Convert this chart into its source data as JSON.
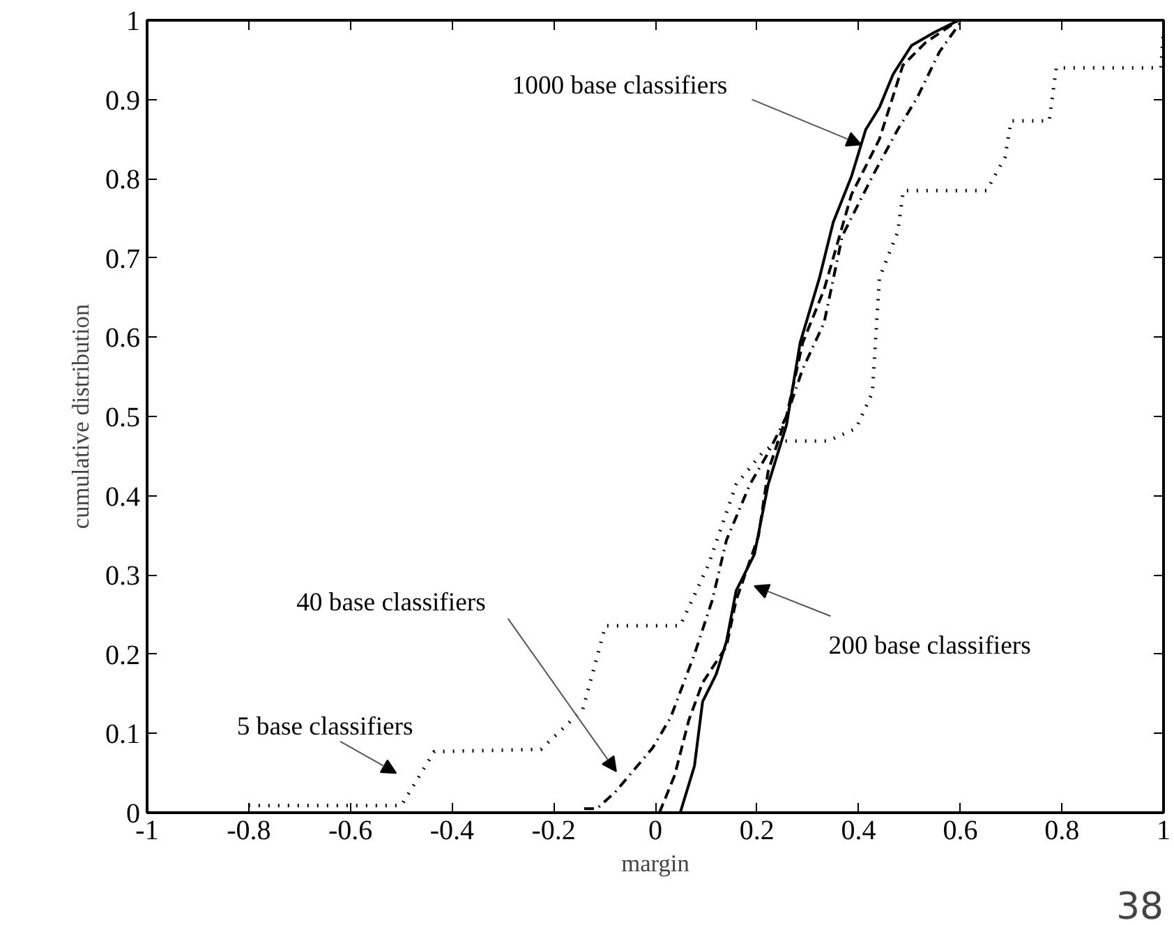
{
  "chart_data": {
    "type": "line",
    "xlabel": "margin",
    "ylabel": "cumulative distribution",
    "xlim": [
      -1,
      1
    ],
    "ylim": [
      0,
      1
    ],
    "xticks": [
      -1,
      -0.8,
      -0.6,
      -0.4,
      -0.2,
      0,
      0.2,
      0.4,
      0.6,
      0.8,
      1
    ],
    "yticks": [
      0,
      0.1,
      0.2,
      0.3,
      0.4,
      0.5,
      0.6,
      0.7,
      0.8,
      0.9,
      1
    ],
    "grid": false,
    "marker": "none",
    "series": [
      {
        "color": "#000000",
        "line_style": "dotted",
        "x": [
          -0.8,
          -0.5,
          -0.435,
          -0.225,
          -0.143,
          -0.098,
          0.049,
          0.104,
          0.159,
          0.214,
          0.249,
          0.34,
          0.395,
          0.427,
          0.441,
          0.477,
          0.488,
          0.652,
          0.688,
          0.7,
          0.775,
          0.789,
          0.995,
          1.0
        ],
        "values": [
          0.009,
          0.009,
          0.077,
          0.08,
          0.13,
          0.236,
          0.236,
          0.312,
          0.414,
          0.457,
          0.469,
          0.469,
          0.485,
          0.53,
          0.675,
          0.733,
          0.785,
          0.785,
          0.827,
          0.873,
          0.873,
          0.94,
          0.94,
          0.99
        ]
      },
      {
        "color": "#000000",
        "line_style": "dashdot",
        "x": [
          -0.14,
          -0.115,
          -0.079,
          -0.005,
          0.03,
          0.077,
          0.112,
          0.14,
          0.186,
          0.222,
          0.258,
          0.29,
          0.332,
          0.368,
          0.405,
          0.433,
          0.477,
          0.515,
          0.559,
          0.6
        ],
        "values": [
          0.005,
          0.005,
          0.026,
          0.082,
          0.12,
          0.2,
          0.268,
          0.344,
          0.414,
          0.454,
          0.5,
          0.56,
          0.618,
          0.728,
          0.775,
          0.81,
          0.862,
          0.902,
          0.96,
          0.997
        ]
      },
      {
        "color": "#000000",
        "line_style": "dashed",
        "x": [
          0.008,
          0.038,
          0.066,
          0.093,
          0.14,
          0.159,
          0.203,
          0.222,
          0.258,
          0.29,
          0.332,
          0.386,
          0.441,
          0.487,
          0.532,
          0.597
        ],
        "values": [
          0,
          0.047,
          0.117,
          0.164,
          0.21,
          0.268,
          0.349,
          0.431,
          0.5,
          0.593,
          0.66,
          0.78,
          0.85,
          0.943,
          0.972,
          1.0
        ]
      },
      {
        "color": "#000000",
        "line_style": "solid",
        "x": [
          0.049,
          0.077,
          0.093,
          0.12,
          0.14,
          0.159,
          0.195,
          0.222,
          0.258,
          0.285,
          0.323,
          0.35,
          0.386,
          0.414,
          0.441,
          0.468,
          0.504,
          0.55,
          0.597
        ],
        "values": [
          0,
          0.059,
          0.14,
          0.175,
          0.216,
          0.28,
          0.326,
          0.414,
          0.489,
          0.593,
          0.675,
          0.745,
          0.803,
          0.862,
          0.89,
          0.932,
          0.968,
          0.985,
          1.0
        ]
      }
    ],
    "annotations": [
      {
        "text": "1000 base classifiers",
        "x": 0.405,
        "y": 0.843
      },
      "200 base classifiers",
      "40 base classifiers",
      "5 base classifiers",
      "38"
    ]
  }
}
